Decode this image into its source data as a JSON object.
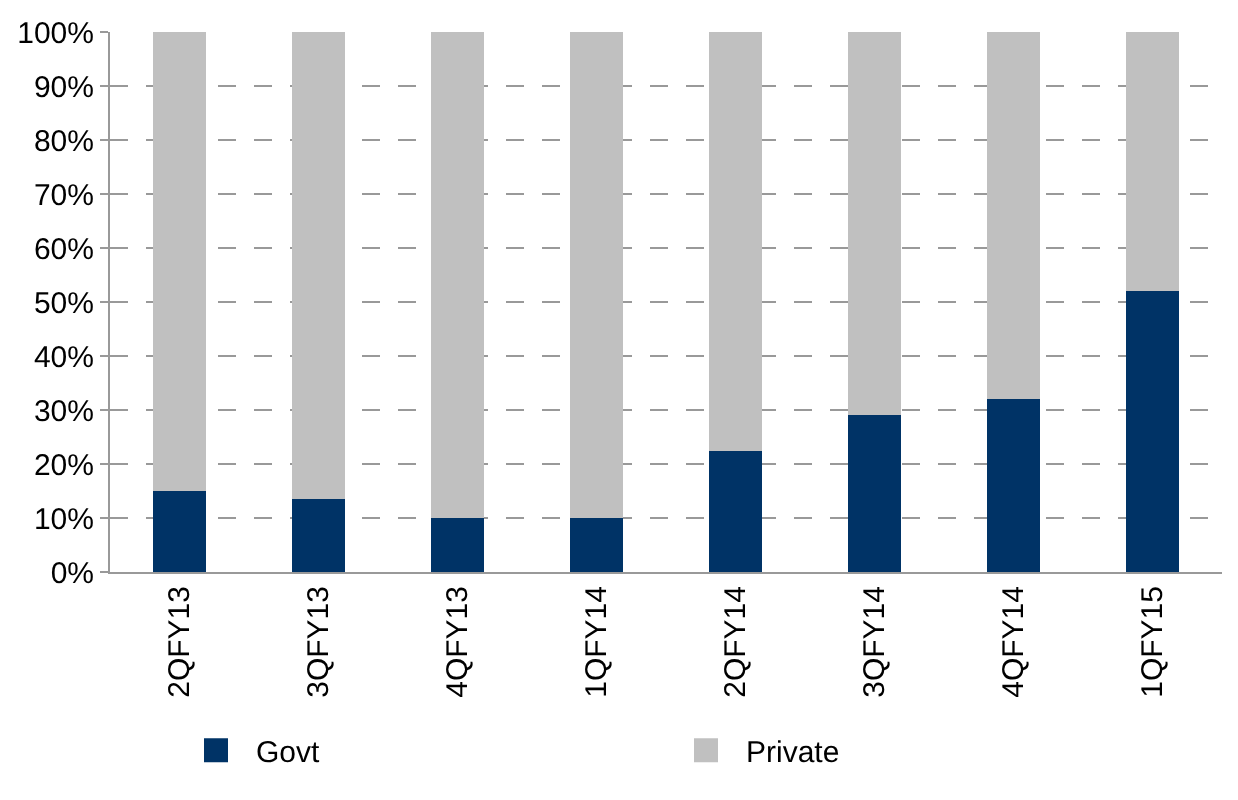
{
  "chart_data": {
    "type": "bar",
    "stacked": true,
    "categories": [
      "2QFY13",
      "3QFY13",
      "4QFY13",
      "1QFY14",
      "2QFY14",
      "3QFY14",
      "4QFY14",
      "1QFY15"
    ],
    "series": [
      {
        "name": "Govt",
        "color": "#003366",
        "values": [
          15,
          13.5,
          10,
          10,
          22.5,
          29,
          32,
          52
        ]
      },
      {
        "name": "Private",
        "color": "#c0c0c0",
        "values": [
          85,
          86.5,
          90,
          90,
          77.5,
          71,
          68,
          48
        ]
      }
    ],
    "ylim": [
      0,
      100
    ],
    "yticks": [
      {
        "value": 0,
        "label": "0%"
      },
      {
        "value": 10,
        "label": "10%"
      },
      {
        "value": 20,
        "label": "20%"
      },
      {
        "value": 30,
        "label": "30%"
      },
      {
        "value": 40,
        "label": "40%"
      },
      {
        "value": 50,
        "label": "50%"
      },
      {
        "value": 60,
        "label": "60%"
      },
      {
        "value": 70,
        "label": "70%"
      },
      {
        "value": 80,
        "label": "80%"
      },
      {
        "value": 90,
        "label": "90%"
      },
      {
        "value": 100,
        "label": "100%"
      }
    ],
    "grid": "y",
    "legend": "bottom"
  }
}
